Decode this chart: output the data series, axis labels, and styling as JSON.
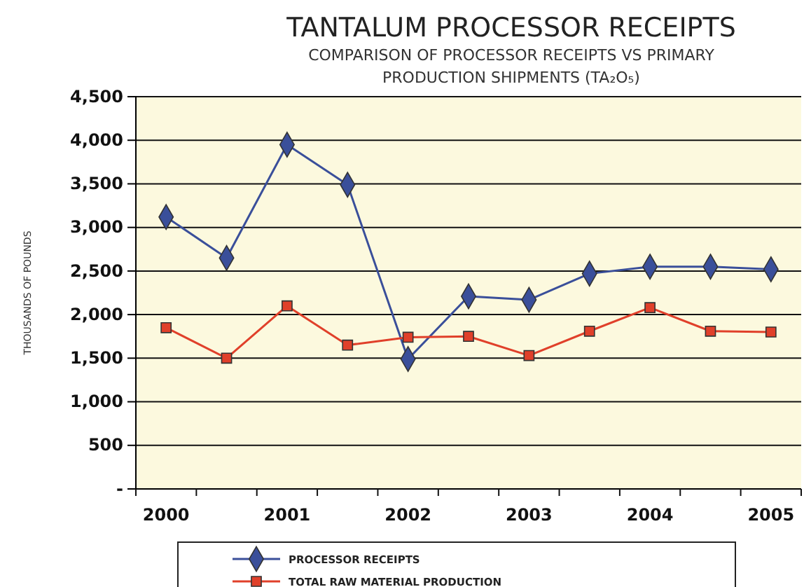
{
  "chart_data": {
    "type": "line",
    "title": "TANTALUM PROCESSOR RECEIPTS",
    "subtitle": "COMPARISON OF PROCESSOR RECEIPTS VS PRIMARY PRODUCTION SHIPMENTS (TA₂O₅)",
    "ylabel": "THOUSANDS OF POUNDS",
    "categories": [
      "2000",
      null,
      "2001",
      null,
      "2002",
      null,
      "2003",
      null,
      "2004",
      null,
      "2005"
    ],
    "ylim": [
      0,
      4500
    ],
    "yticks": [
      {
        "value": 0,
        "label": "-"
      },
      {
        "value": 500,
        "label": "500"
      },
      {
        "value": 1000,
        "label": "1,000"
      },
      {
        "value": 1500,
        "label": "1,500"
      },
      {
        "value": 2000,
        "label": "2,000"
      },
      {
        "value": 2500,
        "label": "2,500"
      },
      {
        "value": 3000,
        "label": "3,000"
      },
      {
        "value": 3500,
        "label": "3,500"
      },
      {
        "value": 4000,
        "label": "4,000"
      },
      {
        "value": 4500,
        "label": "4,500"
      }
    ],
    "grid": "y",
    "legend": "bottom",
    "series": [
      {
        "name": "PROCESSOR RECEIPTS",
        "color": "#3a4f9a",
        "marker": "diamond",
        "values": [
          3120,
          2650,
          3950,
          3490,
          1490,
          2210,
          2170,
          2470,
          2550,
          2550,
          2520
        ]
      },
      {
        "name": "TOTAL RAW MATERIAL PRODUCTION",
        "color": "#e0402a",
        "marker": "square",
        "values": [
          1850,
          1500,
          2100,
          1650,
          1740,
          1750,
          1530,
          1810,
          2080,
          1810,
          1800
        ]
      }
    ]
  }
}
